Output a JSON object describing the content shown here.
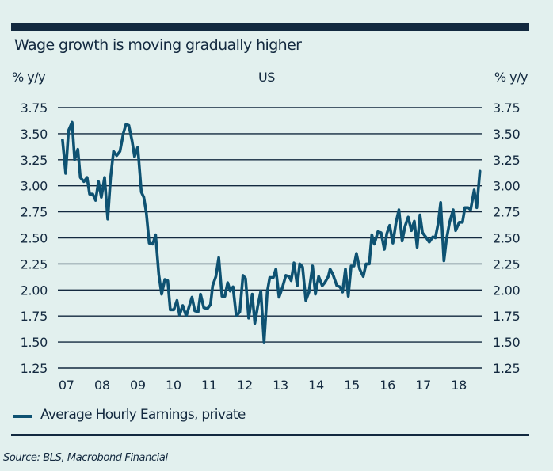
{
  "header": {
    "title": "Wage growth is moving gradually higher",
    "unit_left": "% y/y",
    "unit_right": "% y/y",
    "region": "US"
  },
  "legend": {
    "label": "Average Hourly Earnings, private",
    "color": "#0e5272"
  },
  "source": "Source: BLS, Macrobond Financial",
  "colors": {
    "background": "#e2f0ee",
    "line": "#0e5272",
    "grid": "#13293f",
    "text": "#13293f"
  },
  "chart_data": {
    "type": "line",
    "title": "Wage growth is moving gradually higher",
    "subtitle": "US",
    "xlabel": "",
    "ylabel": "% y/y",
    "ylim": [
      1.25,
      3.75
    ],
    "xlim": [
      2007.26,
      2019.14
    ],
    "yticks": [
      "3.75",
      "3.50",
      "3.25",
      "3.00",
      "2.75",
      "2.50",
      "2.25",
      "2.00",
      "1.75",
      "1.50",
      "1.25"
    ],
    "ytick_values": [
      3.75,
      3.5,
      3.25,
      3.0,
      2.75,
      2.5,
      2.25,
      2.0,
      1.75,
      1.5,
      1.25
    ],
    "xticks": [
      "07",
      "08",
      "09",
      "10",
      "11",
      "12",
      "13",
      "14",
      "15",
      "16",
      "17",
      "18"
    ],
    "xtick_values": [
      2007.5,
      2008.5,
      2009.5,
      2010.5,
      2011.5,
      2012.5,
      2013.5,
      2014.5,
      2015.5,
      2016.5,
      2017.5,
      2018.5
    ],
    "grid": true,
    "dual_y_axis": true,
    "legend_position": "bottom-left",
    "series": [
      {
        "name": "Average Hourly Earnings, private",
        "x": [
          2007.39,
          2007.48,
          2007.56,
          2007.66,
          2007.73,
          2007.82,
          2007.89,
          2007.99,
          2008.08,
          2008.15,
          2008.24,
          2008.32,
          2008.4,
          2008.48,
          2008.57,
          2008.66,
          2008.74,
          2008.82,
          2008.91,
          2009.0,
          2009.1,
          2009.17,
          2009.25,
          2009.34,
          2009.41,
          2009.5,
          2009.6,
          2009.67,
          2009.74,
          2009.82,
          2009.92,
          2010.0,
          2010.09,
          2010.17,
          2010.26,
          2010.34,
          2010.41,
          2010.51,
          2010.6,
          2010.67,
          2010.76,
          2010.86,
          2010.93,
          2011.02,
          2011.1,
          2011.19,
          2011.26,
          2011.35,
          2011.45,
          2011.54,
          2011.6,
          2011.69,
          2011.77,
          2011.86,
          2011.94,
          2012.02,
          2012.09,
          2012.17,
          2012.26,
          2012.36,
          2012.45,
          2012.52,
          2012.61,
          2012.71,
          2012.78,
          2012.86,
          2012.95,
          2013.04,
          2013.13,
          2013.2,
          2013.3,
          2013.37,
          2013.46,
          2013.56,
          2013.65,
          2013.74,
          2013.8,
          2013.88,
          2013.97,
          2014.04,
          2014.12,
          2014.21,
          2014.3,
          2014.4,
          2014.48,
          2014.57,
          2014.67,
          2014.74,
          2014.84,
          2014.89,
          2014.97,
          2015.08,
          2015.17,
          2015.24,
          2015.32,
          2015.4,
          2015.48,
          2015.56,
          2015.63,
          2015.72,
          2015.82,
          2015.9,
          2015.99,
          2016.06,
          2016.13,
          2016.23,
          2016.32,
          2016.41,
          2016.48,
          2016.56,
          2016.65,
          2016.74,
          2016.82,
          2016.91,
          2016.99,
          2017.08,
          2017.17,
          2017.25,
          2017.33,
          2017.41,
          2017.48,
          2017.57,
          2017.67,
          2017.77,
          2017.84,
          2017.92,
          2017.99,
          2018.08,
          2018.15,
          2018.24,
          2018.34,
          2018.41,
          2018.51,
          2018.6,
          2018.67,
          2018.76,
          2018.83,
          2018.93,
          2019.0,
          2019.09
        ],
        "values": [
          3.44,
          3.12,
          3.53,
          3.61,
          3.25,
          3.35,
          3.08,
          3.04,
          3.08,
          2.92,
          2.92,
          2.86,
          3.04,
          2.89,
          3.08,
          2.68,
          3.08,
          3.33,
          3.29,
          3.33,
          3.51,
          3.59,
          3.58,
          3.43,
          3.28,
          3.37,
          2.94,
          2.89,
          2.74,
          2.45,
          2.44,
          2.53,
          2.15,
          1.96,
          2.1,
          2.09,
          1.81,
          1.81,
          1.9,
          1.76,
          1.85,
          1.75,
          1.83,
          1.93,
          1.8,
          1.79,
          1.96,
          1.83,
          1.82,
          1.86,
          2.04,
          2.13,
          2.31,
          1.94,
          1.94,
          2.07,
          1.99,
          2.03,
          1.75,
          1.79,
          2.14,
          2.11,
          1.73,
          1.96,
          1.68,
          1.84,
          1.99,
          1.5,
          1.98,
          2.12,
          2.12,
          2.2,
          1.93,
          2.03,
          2.14,
          2.13,
          2.09,
          2.26,
          2.04,
          2.25,
          2.22,
          1.9,
          1.98,
          2.23,
          1.96,
          2.13,
          2.04,
          2.07,
          2.13,
          2.2,
          2.15,
          2.04,
          2.03,
          1.98,
          2.2,
          1.94,
          2.23,
          2.23,
          2.35,
          2.2,
          2.13,
          2.25,
          2.25,
          2.53,
          2.44,
          2.56,
          2.55,
          2.39,
          2.54,
          2.62,
          2.45,
          2.65,
          2.77,
          2.47,
          2.61,
          2.7,
          2.57,
          2.66,
          2.41,
          2.72,
          2.55,
          2.51,
          2.46,
          2.51,
          2.5,
          2.64,
          2.84,
          2.28,
          2.48,
          2.65,
          2.77,
          2.57,
          2.65,
          2.65,
          2.79,
          2.79,
          2.77,
          2.96,
          2.79,
          3.14
        ]
      }
    ]
  }
}
